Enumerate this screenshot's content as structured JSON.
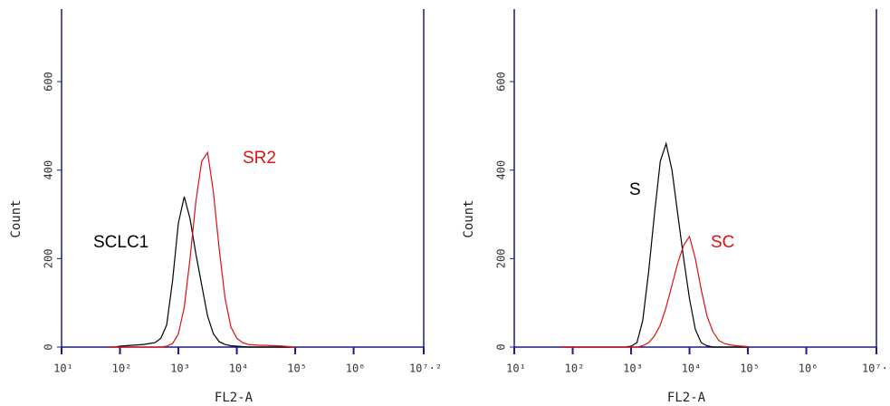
{
  "chart_data": [
    {
      "type": "line",
      "x_label": "FL2-A",
      "y_label": "Count",
      "log_x": true,
      "xlim": [
        10,
        15848932
      ],
      "ylim": [
        0,
        764
      ],
      "axis_color": "#1a1a8c",
      "xticks": [
        {
          "value": 10,
          "label": "10¹"
        },
        {
          "value": 100,
          "label": "10²"
        },
        {
          "value": 1000,
          "label": "10³"
        },
        {
          "value": 10000,
          "label": "10⁴"
        },
        {
          "value": 100000,
          "label": "10⁵"
        },
        {
          "value": 1000000,
          "label": "10⁶"
        },
        {
          "value": 15848932,
          "label": "10⁷·²"
        }
      ],
      "yticks": [
        0,
        200,
        400,
        600
      ],
      "x": [
        63,
        79,
        100,
        126,
        158,
        200,
        251,
        316,
        398,
        501,
        631,
        794,
        1000,
        1259,
        1585,
        1995,
        2512,
        3162,
        3981,
        5012,
        6310,
        7943,
        10000,
        12589,
        15849,
        19953,
        25119,
        31623,
        39811,
        50119,
        63096,
        79433,
        100000
      ],
      "series": [
        {
          "name": "SCLC1",
          "color": "#000000",
          "values": [
            0,
            0,
            2,
            3,
            4,
            5,
            6,
            8,
            10,
            20,
            50,
            150,
            280,
            340,
            290,
            210,
            140,
            70,
            30,
            12,
            6,
            3,
            2,
            1,
            0,
            0,
            0,
            0,
            0,
            0,
            0,
            0,
            0
          ]
        },
        {
          "name": "SR2",
          "color": "#e01010",
          "values": [
            0,
            0,
            0,
            0,
            0,
            0,
            0,
            0,
            0,
            0,
            2,
            8,
            30,
            90,
            200,
            330,
            420,
            440,
            350,
            220,
            110,
            45,
            20,
            10,
            6,
            5,
            4,
            4,
            3,
            3,
            2,
            1,
            0
          ]
        }
      ]
    },
    {
      "type": "line",
      "x_label": "FL2-A",
      "y_label": "Count",
      "log_x": true,
      "xlim": [
        10,
        15848932
      ],
      "ylim": [
        0,
        764
      ],
      "axis_color": "#1a1a8c",
      "xticks": [
        {
          "value": 10,
          "label": "10¹"
        },
        {
          "value": 100,
          "label": "10²"
        },
        {
          "value": 1000,
          "label": "10³"
        },
        {
          "value": 10000,
          "label": "10⁴"
        },
        {
          "value": 100000,
          "label": "10⁵"
        },
        {
          "value": 1000000,
          "label": "10⁶"
        },
        {
          "value": 15848932,
          "label": "10⁷·²"
        }
      ],
      "yticks": [
        0,
        200,
        400,
        600
      ],
      "x": [
        63,
        79,
        100,
        126,
        158,
        200,
        251,
        316,
        398,
        501,
        631,
        794,
        1000,
        1259,
        1585,
        1995,
        2512,
        3162,
        3981,
        5012,
        6310,
        7943,
        10000,
        12589,
        15849,
        19953,
        25119,
        31623,
        39811,
        50119,
        63096,
        79433,
        100000
      ],
      "series": [
        {
          "name": "S",
          "color": "#000000",
          "values": [
            0,
            0,
            0,
            0,
            0,
            0,
            0,
            0,
            0,
            0,
            0,
            0,
            2,
            10,
            60,
            170,
            300,
            420,
            460,
            400,
            300,
            200,
            110,
            40,
            10,
            3,
            0,
            0,
            0,
            0,
            0,
            0,
            0
          ]
        },
        {
          "name": "SC",
          "color": "#e01010",
          "values": [
            0,
            0,
            0,
            0,
            0,
            0,
            0,
            0,
            0,
            0,
            0,
            0,
            0,
            0,
            3,
            10,
            25,
            50,
            90,
            140,
            190,
            230,
            250,
            200,
            130,
            70,
            35,
            15,
            8,
            5,
            3,
            2,
            1
          ]
        }
      ]
    }
  ]
}
